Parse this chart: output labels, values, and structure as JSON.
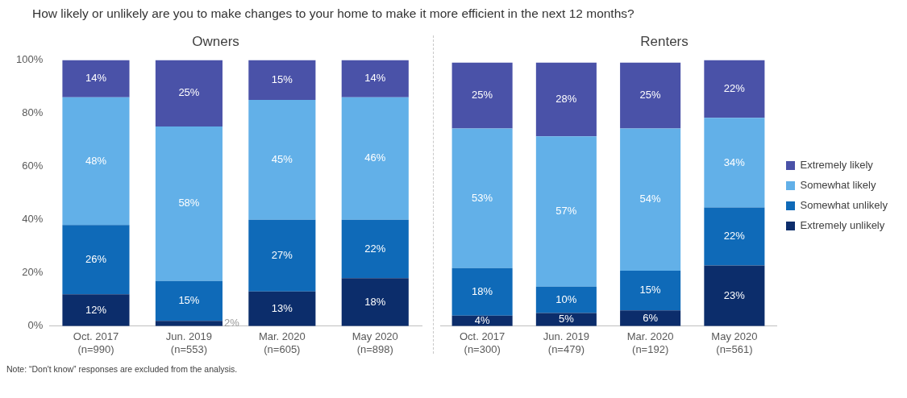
{
  "chart_data": [
    {
      "type": "bar",
      "title": "How likely or unlikely are you to make changes to your home to make it more efficient in the next 12 months?",
      "subtitle": "Owners",
      "categories": [
        "Oct. 2017\n(n=990)",
        "Jun. 2019\n(n=553)",
        "Mar. 2020\n(n=605)",
        "May 2020\n(n=898)"
      ],
      "stacked": true,
      "ylim": [
        0,
        100
      ],
      "yticks": [
        {
          "value": 0,
          "label": "0%"
        },
        {
          "value": 20,
          "label": "20%"
        },
        {
          "value": 40,
          "label": "40%"
        },
        {
          "value": 60,
          "label": "60%"
        },
        {
          "value": 80,
          "label": "80%"
        },
        {
          "value": 100,
          "label": "100%"
        }
      ],
      "grid": false,
      "legend": false,
      "series": [
        {
          "color": "#0c2d6b",
          "values": [
            12,
            2,
            13,
            18
          ],
          "value_labels": [
            "12%",
            "2%",
            "13%",
            "18%"
          ]
        },
        {
          "color": "#0f6ab8",
          "values": [
            26,
            15,
            27,
            22
          ],
          "value_labels": [
            "26%",
            "15%",
            "27%",
            "22%"
          ]
        },
        {
          "color": "#62b0e8",
          "values": [
            48,
            58,
            45,
            46
          ],
          "value_labels": [
            "48%",
            "58%",
            "45%",
            "46%"
          ]
        },
        {
          "color": "#4a52a8",
          "values": [
            14,
            25,
            15,
            14
          ],
          "value_labels": [
            "14%",
            "25%",
            "15%",
            "14%"
          ]
        }
      ],
      "annotations": [
        "Note: “Don't know” responses are excluded from the analysis."
      ]
    },
    {
      "type": "bar",
      "subtitle": "Renters",
      "categories": [
        "Oct. 2017\n(n=300)",
        "Jun. 2019\n(n=479)",
        "Mar. 2020\n(n=192)",
        "May 2020\n(n=561)"
      ],
      "stacked": true,
      "ylim": [
        0,
        101
      ],
      "tick_labels": "x",
      "grid": false,
      "legend": "right",
      "series": [
        {
          "name": "Extremely unlikely",
          "color": "#0c2d6b",
          "values": [
            4,
            5,
            6,
            23
          ],
          "value_labels": [
            "4%",
            "5%",
            "6%",
            "23%"
          ]
        },
        {
          "name": "Somewhat unlikely",
          "color": "#0f6ab8",
          "values": [
            18,
            10,
            15,
            22
          ],
          "value_labels": [
            "18%",
            "10%",
            "15%",
            "22%"
          ]
        },
        {
          "name": "Somewhat likely",
          "color": "#62b0e8",
          "values": [
            53,
            57,
            54,
            34
          ],
          "value_labels": [
            "53%",
            "57%",
            "54%",
            "34%"
          ]
        },
        {
          "name": "Extremely likely",
          "color": "#4a52a8",
          "values": [
            25,
            28,
            25,
            22
          ],
          "value_labels": [
            "25%",
            "28%",
            "25%",
            "22%"
          ]
        }
      ]
    }
  ]
}
